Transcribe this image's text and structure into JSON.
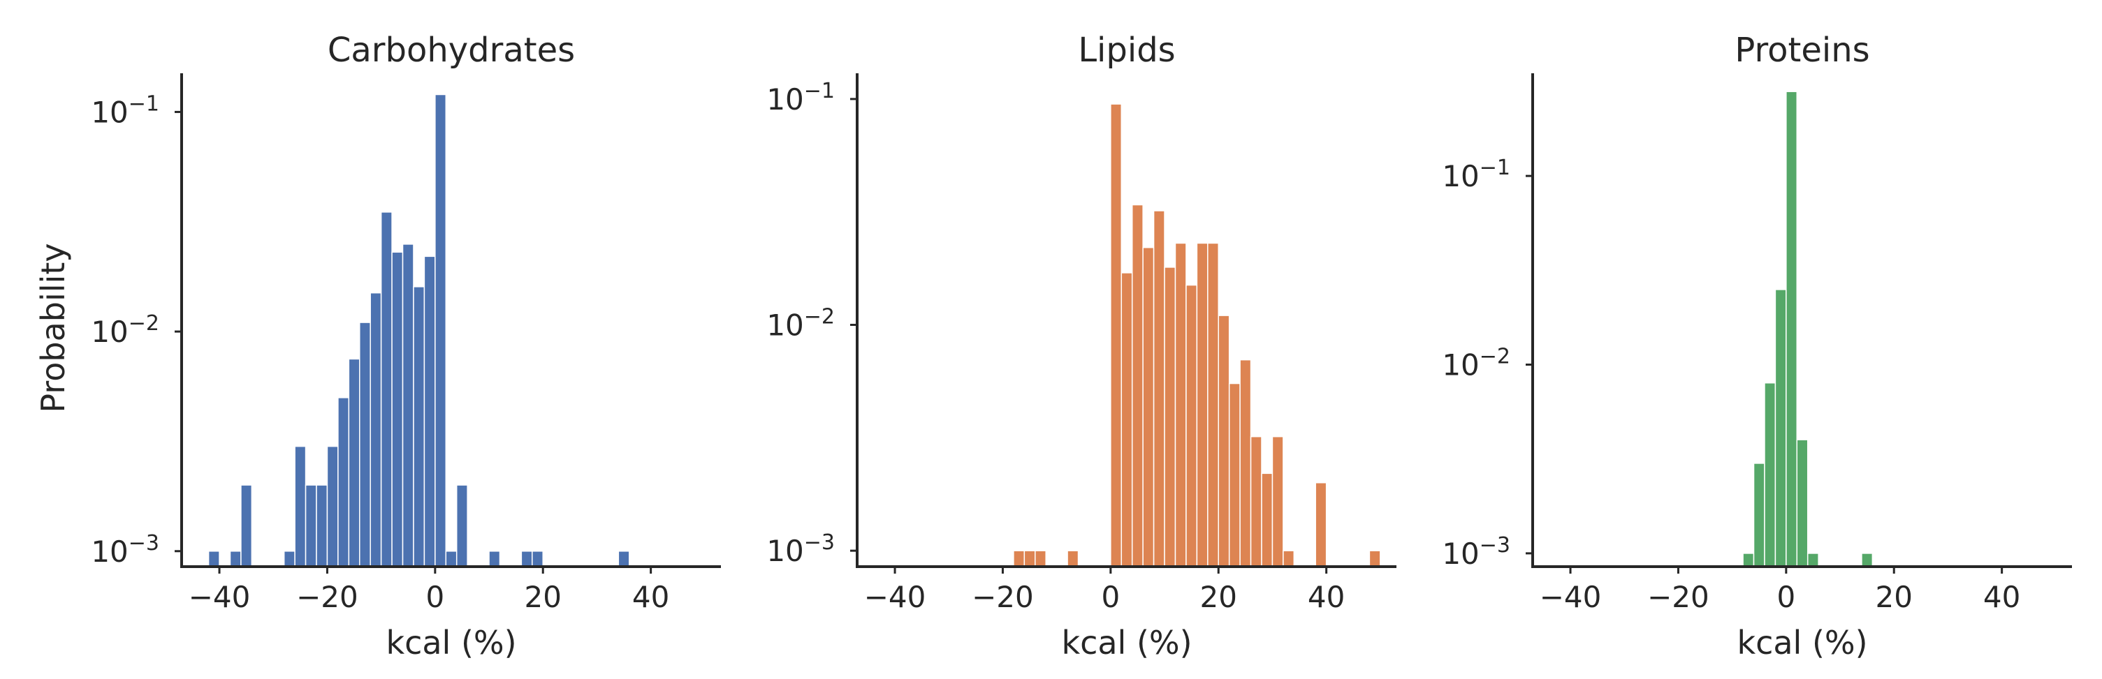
{
  "figure": {
    "ylabel": "Probability",
    "yscale": "log"
  },
  "chart_data": [
    {
      "type": "bar",
      "title": "Carbohydrates",
      "xlabel": "kcal (%)",
      "ylabel": "Probability",
      "color": "#4c72b0",
      "xlim": [
        -47,
        53
      ],
      "ylim": [
        0.00085,
        0.15
      ],
      "bin_width": 2,
      "xticks": [
        -40,
        -20,
        0,
        20,
        40
      ],
      "xtick_labels": [
        "−40",
        "−20",
        "0",
        "20",
        "40"
      ],
      "yticks": [
        0.001,
        0.01,
        0.1
      ],
      "bins": [
        [
          -42,
          0.001
        ],
        [
          -38,
          0.001
        ],
        [
          -36,
          0.002
        ],
        [
          -28,
          0.001
        ],
        [
          -26,
          0.003
        ],
        [
          -24,
          0.002
        ],
        [
          -22,
          0.002
        ],
        [
          -20,
          0.003
        ],
        [
          -18,
          0.005
        ],
        [
          -16,
          0.0075
        ],
        [
          -14,
          0.011
        ],
        [
          -12,
          0.015
        ],
        [
          -10,
          0.035
        ],
        [
          -8,
          0.023
        ],
        [
          -6,
          0.025
        ],
        [
          -4,
          0.016
        ],
        [
          -2,
          0.022
        ],
        [
          0,
          0.12
        ],
        [
          2,
          0.001
        ],
        [
          4,
          0.002
        ],
        [
          10,
          0.001
        ],
        [
          16,
          0.001
        ],
        [
          18,
          0.001
        ],
        [
          34,
          0.001
        ]
      ]
    },
    {
      "type": "bar",
      "title": "Lipids",
      "xlabel": "kcal (%)",
      "color": "#dd8452",
      "xlim": [
        -47,
        53
      ],
      "ylim": [
        0.00085,
        0.13
      ],
      "bin_width": 2,
      "xticks": [
        -40,
        -20,
        0,
        20,
        40
      ],
      "xtick_labels": [
        "−40",
        "−20",
        "0",
        "20",
        "40"
      ],
      "yticks": [
        0.001,
        0.01,
        0.1
      ],
      "bins": [
        [
          -18,
          0.001
        ],
        [
          -16,
          0.001
        ],
        [
          -14,
          0.001
        ],
        [
          -8,
          0.001
        ],
        [
          0,
          0.095
        ],
        [
          2,
          0.017
        ],
        [
          4,
          0.034
        ],
        [
          6,
          0.022
        ],
        [
          8,
          0.032
        ],
        [
          10,
          0.018
        ],
        [
          12,
          0.023
        ],
        [
          14,
          0.015
        ],
        [
          16,
          0.023
        ],
        [
          18,
          0.023
        ],
        [
          20,
          0.011
        ],
        [
          22,
          0.0055
        ],
        [
          24,
          0.007
        ],
        [
          26,
          0.0032
        ],
        [
          28,
          0.0022
        ],
        [
          30,
          0.0032
        ],
        [
          32,
          0.001
        ],
        [
          38,
          0.002
        ],
        [
          48,
          0.001
        ]
      ]
    },
    {
      "type": "bar",
      "title": "Proteins",
      "xlabel": "kcal (%)",
      "color": "#55a868",
      "xlim": [
        -47,
        53
      ],
      "ylim": [
        0.00085,
        0.35
      ],
      "bin_width": 2,
      "xticks": [
        -40,
        -20,
        0,
        20,
        40
      ],
      "xtick_labels": [
        "−40",
        "−20",
        "0",
        "20",
        "40"
      ],
      "yticks": [
        0.001,
        0.01,
        0.1
      ],
      "bins": [
        [
          -8,
          0.001
        ],
        [
          -6,
          0.003
        ],
        [
          -4,
          0.008
        ],
        [
          -2,
          0.025
        ],
        [
          0,
          0.28
        ],
        [
          2,
          0.004
        ],
        [
          4,
          0.001
        ],
        [
          14,
          0.001
        ]
      ]
    }
  ]
}
